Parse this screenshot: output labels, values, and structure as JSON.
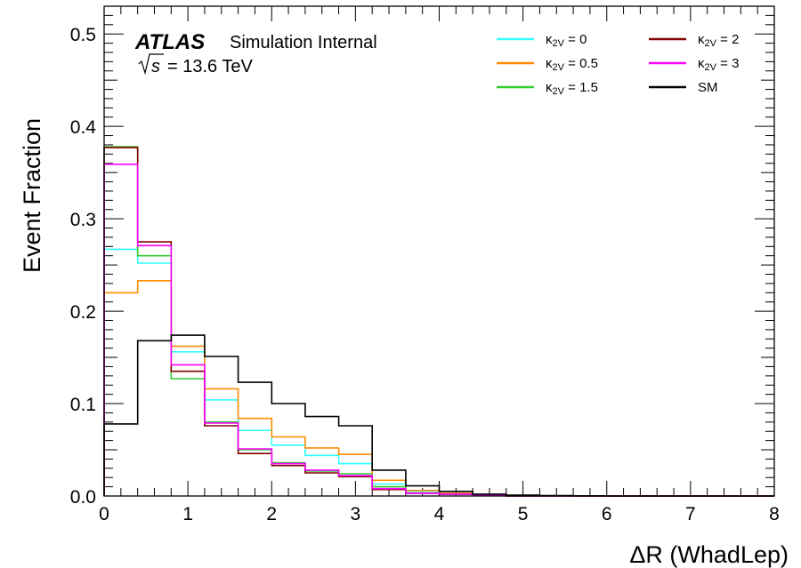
{
  "chart_data": {
    "type": "step-histogram",
    "xlabel": "ΔR (WhadLep)",
    "ylabel": "Event Fraction",
    "xlim": [
      0,
      8
    ],
    "ylim": [
      0,
      0.53
    ],
    "x_ticks": [
      "0",
      "1",
      "2",
      "3",
      "4",
      "5",
      "6",
      "7",
      "8"
    ],
    "y_ticks": [
      "0.0",
      "0.1",
      "0.2",
      "0.3",
      "0.4",
      "0.5"
    ],
    "grid": false,
    "legend_position": "top-right",
    "experiment_label": "ATLAS",
    "experiment_sublabel": "Simulation Internal",
    "energy_label": "= 13.6 TeV",
    "energy_symbol": "s",
    "bin_edges": [
      0,
      0.4,
      0.8,
      1.2,
      1.6,
      2.0,
      2.4,
      2.8,
      3.2,
      3.6,
      4.0,
      4.4,
      4.8,
      5.2,
      5.6,
      6.0,
      6.4,
      6.8,
      7.2,
      7.6,
      8.0
    ],
    "series": [
      {
        "name": "κ2V = 0",
        "color": "#33ffff",
        "values": [
          0.267,
          0.252,
          0.156,
          0.104,
          0.071,
          0.055,
          0.044,
          0.035,
          0.013,
          0.005,
          0.003,
          0.001,
          0.0005,
          0.0003,
          0,
          0,
          0,
          0,
          0,
          0
        ]
      },
      {
        "name": "κ2V = 0.5",
        "color": "#ff8c00",
        "values": [
          0.22,
          0.233,
          0.162,
          0.116,
          0.084,
          0.064,
          0.052,
          0.045,
          0.017,
          0.006,
          0.003,
          0.0015,
          0.0008,
          0.0003,
          0,
          0,
          0,
          0,
          0,
          0
        ]
      },
      {
        "name": "κ2V = 1.5",
        "color": "#33cc33",
        "values": [
          0.378,
          0.26,
          0.127,
          0.08,
          0.05,
          0.036,
          0.027,
          0.024,
          0.01,
          0.003,
          0.002,
          0.001,
          0,
          0,
          0,
          0,
          0,
          0,
          0,
          0
        ]
      },
      {
        "name": "κ2V = 2",
        "color": "#800000",
        "values": [
          0.377,
          0.275,
          0.135,
          0.076,
          0.046,
          0.033,
          0.025,
          0.021,
          0.007,
          0.003,
          0.002,
          0.001,
          0,
          0,
          0,
          0,
          0,
          0,
          0,
          0
        ]
      },
      {
        "name": "κ2V = 3",
        "color": "#ff00ff",
        "values": [
          0.359,
          0.271,
          0.142,
          0.079,
          0.051,
          0.035,
          0.028,
          0.022,
          0.008,
          0.003,
          0.002,
          0.001,
          0,
          0,
          0,
          0,
          0,
          0,
          0,
          0
        ]
      },
      {
        "name": "SM",
        "color": "#000000",
        "values": [
          0.078,
          0.168,
          0.174,
          0.151,
          0.123,
          0.1,
          0.086,
          0.076,
          0.028,
          0.011,
          0.005,
          0.002,
          0.001,
          0.0005,
          0.0002,
          0,
          0,
          0,
          0,
          0
        ]
      }
    ],
    "legend": {
      "left_column": [
        {
          "kappa": "κ",
          "sub": "2V",
          "rest": " = 0"
        },
        {
          "kappa": "κ",
          "sub": "2V",
          "rest": " = 0.5"
        },
        {
          "kappa": "κ",
          "sub": "2V",
          "rest": " = 1.5"
        }
      ],
      "right_column": [
        {
          "kappa": "κ",
          "sub": "2V",
          "rest": " = 2"
        },
        {
          "kappa": "κ",
          "sub": "2V",
          "rest": " = 3"
        },
        {
          "text": "SM"
        }
      ]
    }
  }
}
